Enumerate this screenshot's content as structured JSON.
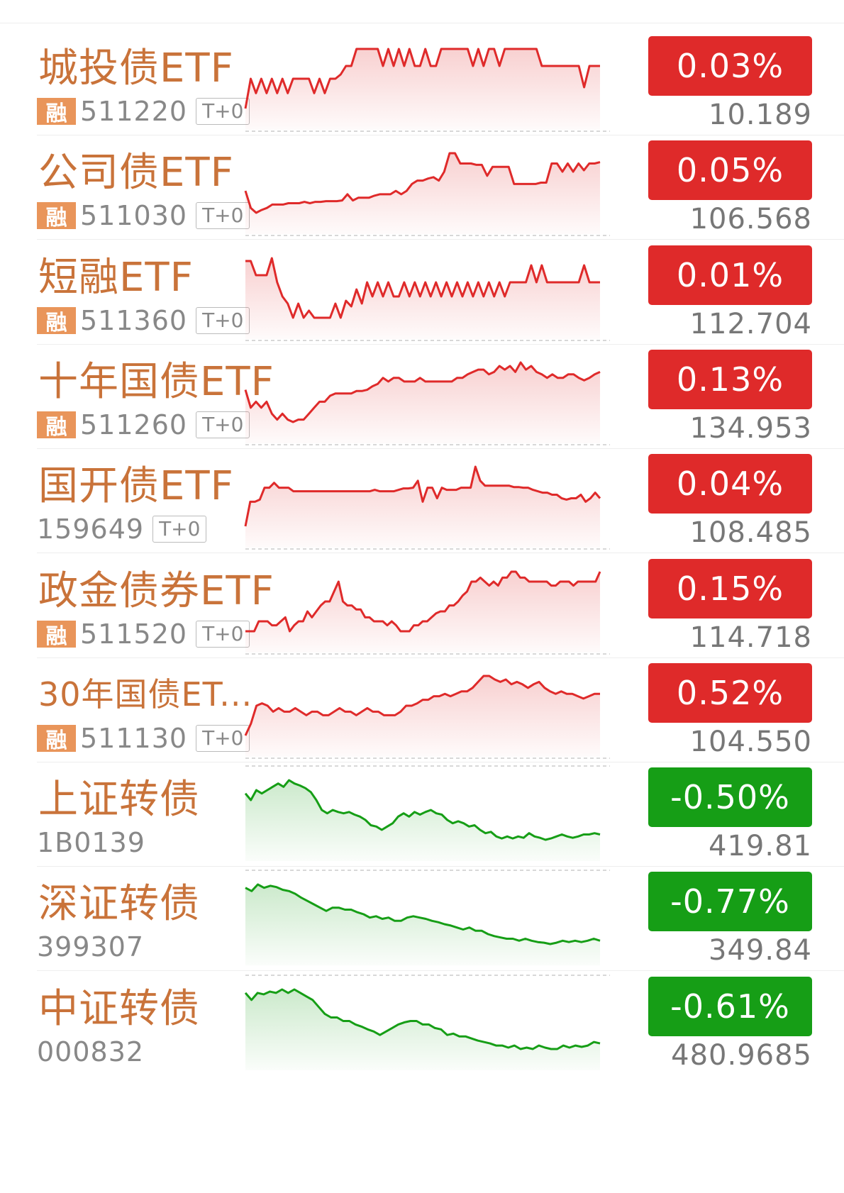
{
  "colors": {
    "up": "#df2a2a",
    "down": "#169e16",
    "name": "#c9733a"
  },
  "rows": [
    {
      "name": "城投债ETF",
      "badge": "融",
      "code": "511220",
      "t0": "T+0",
      "change": "0.03%",
      "price": "10.189",
      "dir": "up",
      "series": [
        0,
        35,
        18,
        35,
        18,
        35,
        18,
        35,
        18,
        35,
        35,
        35,
        35,
        18,
        35,
        18,
        35,
        35,
        40,
        50,
        50,
        70,
        70,
        70,
        70,
        70,
        50,
        70,
        50,
        70,
        50,
        70,
        50,
        50,
        70,
        50,
        50,
        70,
        70,
        70,
        70,
        70,
        70,
        50,
        70,
        50,
        70,
        70,
        50,
        70,
        70,
        70,
        70,
        70,
        70,
        70,
        50,
        50,
        50,
        50,
        50,
        50,
        50,
        50,
        25,
        50,
        50,
        50
      ]
    },
    {
      "name": "公司债ETF",
      "badge": "融",
      "code": "511030",
      "t0": "T+0",
      "change": "0.05%",
      "price": "106.568",
      "dir": "up",
      "series": [
        40,
        15,
        8,
        12,
        15,
        20,
        20,
        20,
        22,
        22,
        22,
        24,
        22,
        24,
        24,
        25,
        25,
        25,
        26,
        35,
        26,
        30,
        30,
        30,
        33,
        35,
        35,
        35,
        40,
        35,
        40,
        50,
        55,
        55,
        58,
        60,
        55,
        68,
        95,
        95,
        80,
        80,
        80,
        78,
        78,
        62,
        75,
        75,
        75,
        75,
        50,
        50,
        50,
        50,
        50,
        52,
        52,
        80,
        80,
        68,
        80,
        68,
        80,
        70,
        80,
        80,
        82
      ]
    },
    {
      "name": "短融ETF",
      "badge": "融",
      "code": "511360",
      "t0": "T+0",
      "change": "0.01%",
      "price": "112.704",
      "dir": "up",
      "series": [
        70,
        70,
        60,
        60,
        60,
        72,
        55,
        45,
        40,
        30,
        40,
        30,
        35,
        30,
        30,
        30,
        30,
        40,
        30,
        42,
        38,
        50,
        40,
        55,
        45,
        55,
        45,
        55,
        45,
        45,
        55,
        45,
        55,
        45,
        55,
        45,
        55,
        45,
        55,
        45,
        55,
        45,
        55,
        45,
        55,
        45,
        55,
        45,
        55,
        45,
        55,
        55,
        55,
        55,
        67,
        55,
        67,
        55,
        55,
        55,
        55,
        55,
        55,
        55,
        67,
        55,
        55,
        55
      ]
    },
    {
      "name": "十年国债ETF",
      "badge": "融",
      "code": "511260",
      "t0": "T+0",
      "change": "0.13%",
      "price": "134.953",
      "dir": "up",
      "series": [
        55,
        40,
        45,
        40,
        45,
        35,
        30,
        35,
        30,
        28,
        30,
        30,
        35,
        40,
        45,
        45,
        50,
        52,
        52,
        52,
        52,
        54,
        54,
        55,
        58,
        60,
        65,
        62,
        65,
        65,
        62,
        62,
        62,
        65,
        62,
        62,
        62,
        62,
        62,
        62,
        65,
        65,
        68,
        70,
        72,
        72,
        68,
        70,
        75,
        72,
        75,
        70,
        78,
        72,
        75,
        70,
        68,
        65,
        68,
        65,
        65,
        68,
        68,
        65,
        63,
        65,
        68,
        70
      ]
    },
    {
      "name": "国开债ETF",
      "badge": "",
      "code": "159649",
      "t0": "T+0",
      "change": "0.04%",
      "price": "108.485",
      "dir": "up",
      "series": [
        0,
        35,
        35,
        38,
        55,
        55,
        62,
        55,
        55,
        55,
        50,
        50,
        50,
        50,
        50,
        50,
        50,
        50,
        50,
        50,
        50,
        50,
        50,
        50,
        50,
        50,
        50,
        52,
        50,
        50,
        50,
        50,
        52,
        54,
        54,
        55,
        65,
        35,
        55,
        55,
        40,
        55,
        52,
        52,
        52,
        55,
        55,
        55,
        85,
        65,
        58,
        58,
        58,
        58,
        58,
        58,
        56,
        56,
        55,
        55,
        52,
        50,
        48,
        48,
        45,
        45,
        40,
        38,
        40,
        40,
        45,
        35,
        40,
        48,
        40
      ]
    },
    {
      "name": "政金债券ETF",
      "badge": "融",
      "code": "511520",
      "t0": "T+0",
      "change": "0.15%",
      "price": "114.718",
      "dir": "up",
      "series": [
        45,
        45,
        45,
        50,
        50,
        50,
        48,
        48,
        50,
        52,
        45,
        48,
        50,
        50,
        55,
        52,
        55,
        58,
        60,
        60,
        65,
        70,
        60,
        58,
        58,
        56,
        56,
        52,
        52,
        50,
        50,
        50,
        48,
        50,
        48,
        45,
        45,
        45,
        48,
        48,
        50,
        50,
        52,
        54,
        55,
        55,
        58,
        58,
        60,
        63,
        65,
        70,
        70,
        72,
        70,
        68,
        70,
        68,
        72,
        72,
        75,
        75,
        72,
        72,
        70,
        70,
        70,
        70,
        70,
        68,
        68,
        70,
        70,
        70,
        68,
        70,
        70,
        70,
        70,
        70,
        75
      ]
    },
    {
      "name": "30年国债ET...",
      "badge": "融",
      "code": "511130",
      "t0": "T+0",
      "change": "0.52%",
      "price": "104.550",
      "dir": "up",
      "series": [
        25,
        35,
        50,
        52,
        50,
        45,
        48,
        45,
        45,
        48,
        45,
        42,
        45,
        45,
        42,
        42,
        45,
        48,
        45,
        45,
        42,
        45,
        48,
        45,
        45,
        42,
        42,
        42,
        45,
        50,
        50,
        52,
        55,
        55,
        58,
        58,
        60,
        58,
        60,
        62,
        62,
        65,
        70,
        75,
        75,
        72,
        70,
        72,
        68,
        70,
        68,
        65,
        68,
        70,
        65,
        62,
        60,
        62,
        60,
        60,
        58,
        56,
        58,
        60,
        60
      ]
    },
    {
      "name": "上证转债",
      "badge": "",
      "code": "1B0139",
      "t0": "",
      "change": "-0.50%",
      "price": "419.81",
      "dir": "down",
      "series": [
        70,
        60,
        75,
        70,
        75,
        80,
        85,
        80,
        90,
        85,
        82,
        78,
        72,
        60,
        45,
        40,
        45,
        42,
        40,
        42,
        38,
        35,
        30,
        22,
        20,
        15,
        20,
        25,
        35,
        40,
        35,
        42,
        38,
        42,
        45,
        40,
        38,
        30,
        25,
        28,
        25,
        20,
        22,
        15,
        10,
        12,
        5,
        2,
        5,
        2,
        5,
        3,
        10,
        5,
        3,
        0,
        2,
        5,
        8,
        5,
        3,
        5,
        8,
        8,
        10,
        8
      ]
    },
    {
      "name": "深证转债",
      "badge": "",
      "code": "399307",
      "t0": "",
      "change": "-0.77%",
      "price": "349.84",
      "dir": "down",
      "series": [
        85,
        80,
        90,
        85,
        88,
        86,
        82,
        80,
        76,
        70,
        65,
        60,
        55,
        50,
        55,
        55,
        52,
        52,
        48,
        45,
        40,
        42,
        38,
        40,
        35,
        35,
        40,
        42,
        40,
        38,
        35,
        33,
        30,
        28,
        25,
        22,
        25,
        20,
        20,
        15,
        12,
        10,
        8,
        8,
        5,
        8,
        5,
        3,
        2,
        0,
        2,
        5,
        3,
        5,
        3,
        5,
        8,
        5
      ]
    },
    {
      "name": "中证转债",
      "badge": "",
      "code": "000832",
      "t0": "",
      "change": "-0.61%",
      "price": "480.9685",
      "dir": "down",
      "series": [
        80,
        70,
        80,
        78,
        82,
        80,
        85,
        80,
        85,
        80,
        75,
        70,
        60,
        50,
        45,
        45,
        40,
        40,
        35,
        32,
        28,
        25,
        20,
        25,
        30,
        35,
        38,
        40,
        40,
        35,
        35,
        30,
        28,
        20,
        22,
        18,
        18,
        15,
        12,
        10,
        8,
        5,
        5,
        2,
        5,
        0,
        2,
        0,
        5,
        2,
        0,
        0,
        5,
        2,
        5,
        3,
        5,
        10,
        8
      ]
    }
  ]
}
